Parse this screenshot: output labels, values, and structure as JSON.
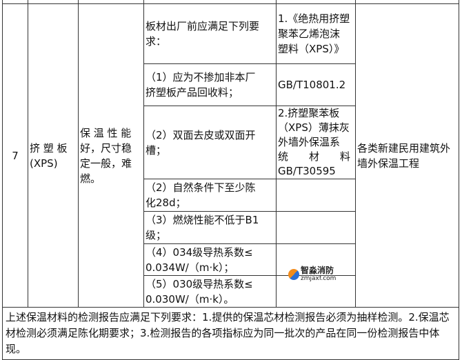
{
  "row": {
    "number": "7",
    "material": "挤 塑 板\n(XPS)",
    "properties": "保 温 性 能\n好，尺寸稳\n定一般，难\n燃。",
    "requirements": [
      "板材出厂前应满足下列要\n求：",
      " （1）应为不掺加非本厂\n挤塑板产品回收料；",
      " （2）双面去皮或双面开\n槽；",
      " （2）自然条件下至少陈\n化28d；",
      " （3）燃烧性能不低于B1\n级；",
      " （4）034级导热系数≤\n0.034W/（m·k）；",
      " （5）030级导热系数≤\n0.030W/（m·k）。"
    ],
    "standards": [
      "1.《绝热用挤塑\n聚苯乙烯泡沫\n塑料（XPS）》",
      "GB/T10801.2",
      "2.挤塑聚苯板\n（XPS）薄抹灰\n外墙外保温系\n统　　材　　料\nGB/T30595",
      "",
      "",
      "",
      ""
    ],
    "application": "各类新建民用建筑外\n墙外保温工程"
  },
  "footer": "上述保温材料的检测报告应满足下列要求：1.提供的保温芯材检测报告必须为抽样检测。2.保温芯材检测必须满足陈化期要求；3.检测报告的各项指标应为同一批次的产品在同一份检测报告中体现。",
  "watermark": {
    "name": "智淼消防",
    "url": "zmjaxf.com"
  }
}
